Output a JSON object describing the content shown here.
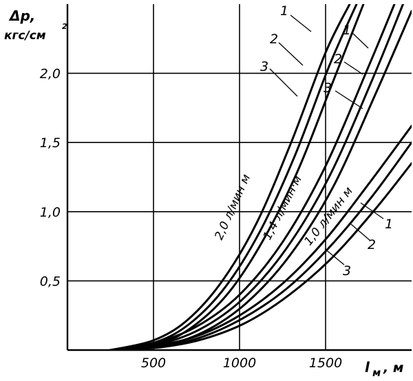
{
  "chart_data": {
    "type": "line",
    "ylabel_symbol": "Δp,",
    "ylabel_unit": "кгс/см",
    "ylabel_exp": "2",
    "xlabel_symbol": "l",
    "xlabel_sub": "м",
    "xlabel_unit": ", м",
    "xlim": [
      0,
      2000
    ],
    "ylim": [
      0,
      2.5
    ],
    "x_ticks": [
      "500",
      "1000",
      "1500"
    ],
    "y_ticks": [
      "0,5",
      "1,0",
      "1,5",
      "2,0"
    ],
    "grid": true,
    "groups": [
      {
        "label": "2,0 л/мин м",
        "series": [
          {
            "name": "1",
            "x": [
              250,
              500,
              700,
              900,
              1100,
              1300,
              1500,
              1640
            ],
            "y": [
              0,
              0.07,
              0.22,
              0.5,
              0.92,
              1.5,
              2.15,
              2.5
            ]
          },
          {
            "name": "2",
            "x": [
              250,
              520,
              720,
              920,
              1120,
              1320,
              1520,
              1680
            ],
            "y": [
              0,
              0.06,
              0.2,
              0.46,
              0.86,
              1.4,
              2.05,
              2.5
            ]
          },
          {
            "name": "3",
            "x": [
              250,
              540,
              740,
              940,
              1140,
              1340,
              1540,
              1720
            ],
            "y": [
              0,
              0.05,
              0.18,
              0.42,
              0.8,
              1.3,
              1.93,
              2.5
            ]
          }
        ]
      },
      {
        "label": "1,4 л/мин·м",
        "series": [
          {
            "name": "1",
            "x": [
              250,
              500,
              750,
              1000,
              1250,
              1500,
              1750,
              1900
            ],
            "y": [
              0,
              0.05,
              0.17,
              0.4,
              0.78,
              1.33,
              2.05,
              2.5
            ]
          },
          {
            "name": "2",
            "x": [
              250,
              520,
              770,
              1020,
              1270,
              1520,
              1770,
              1950
            ],
            "y": [
              0,
              0.04,
              0.15,
              0.37,
              0.73,
              1.25,
              1.95,
              2.5
            ]
          },
          {
            "name": "3",
            "x": [
              250,
              540,
              790,
              1040,
              1290,
              1540,
              1790,
              2000
            ],
            "y": [
              0,
              0.03,
              0.13,
              0.34,
              0.68,
              1.17,
              1.85,
              2.45
            ]
          }
        ]
      },
      {
        "label": "1,0 л/мин м",
        "series": [
          {
            "name": "1",
            "x": [
              250,
              500,
              750,
              1000,
              1250,
              1500,
              1750,
              2000
            ],
            "y": [
              0,
              0.03,
              0.1,
              0.25,
              0.48,
              0.8,
              1.2,
              1.62
            ]
          },
          {
            "name": "2",
            "x": [
              250,
              520,
              770,
              1020,
              1270,
              1520,
              1770,
              2000
            ],
            "y": [
              0,
              0.025,
              0.09,
              0.23,
              0.44,
              0.74,
              1.11,
              1.5
            ]
          },
          {
            "name": "3",
            "x": [
              250,
              540,
              790,
              1040,
              1290,
              1540,
              1790,
              2000
            ],
            "y": [
              0,
              0.02,
              0.08,
              0.2,
              0.4,
              0.67,
              1.02,
              1.35
            ]
          }
        ]
      }
    ]
  }
}
